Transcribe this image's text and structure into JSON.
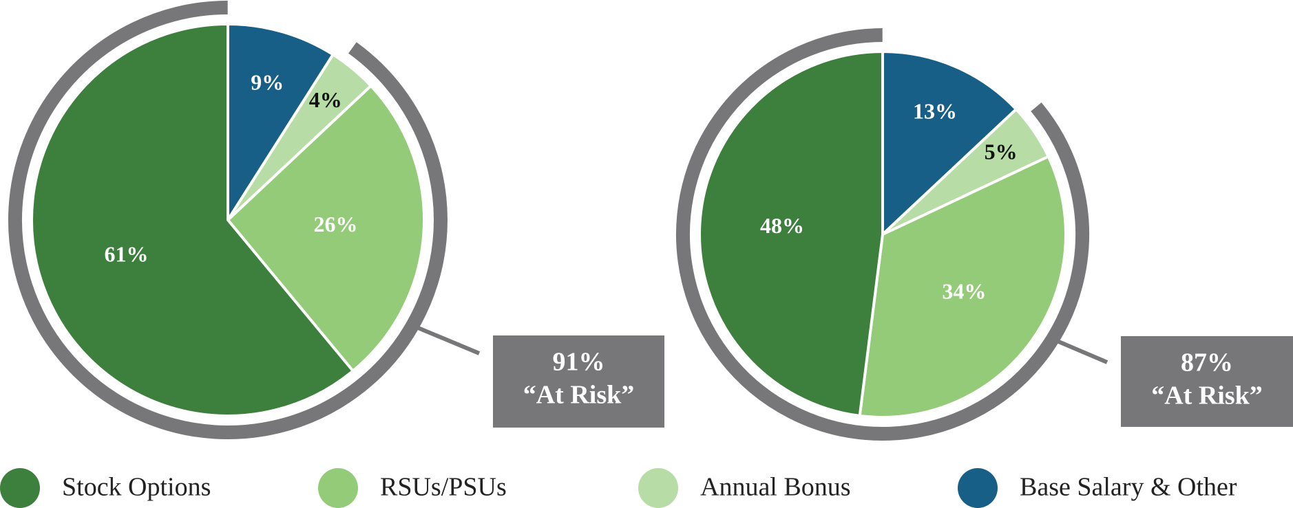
{
  "chart_data": [
    {
      "type": "pie",
      "values": [
        9,
        4,
        26,
        61
      ],
      "value_labels": [
        "9%",
        "4%",
        "26%",
        "61%"
      ],
      "annotation": [
        "91%",
        "“At Risk”"
      ]
    },
    {
      "type": "pie",
      "values": [
        13,
        5,
        34,
        48
      ],
      "value_labels": [
        "13%",
        "5%",
        "34%",
        "48%"
      ],
      "annotation": [
        "87%",
        "“At Risk”"
      ]
    }
  ],
  "legend": {
    "items": [
      {
        "name": "Base Salary & Other",
        "color": "#175f86"
      },
      {
        "name": "Annual Bonus",
        "color": "#b7dca5"
      },
      {
        "name": "RSUs/PSUs",
        "color": "#94cb78"
      },
      {
        "name": "Stock Options",
        "color": "#3d7f3d"
      }
    ]
  }
}
